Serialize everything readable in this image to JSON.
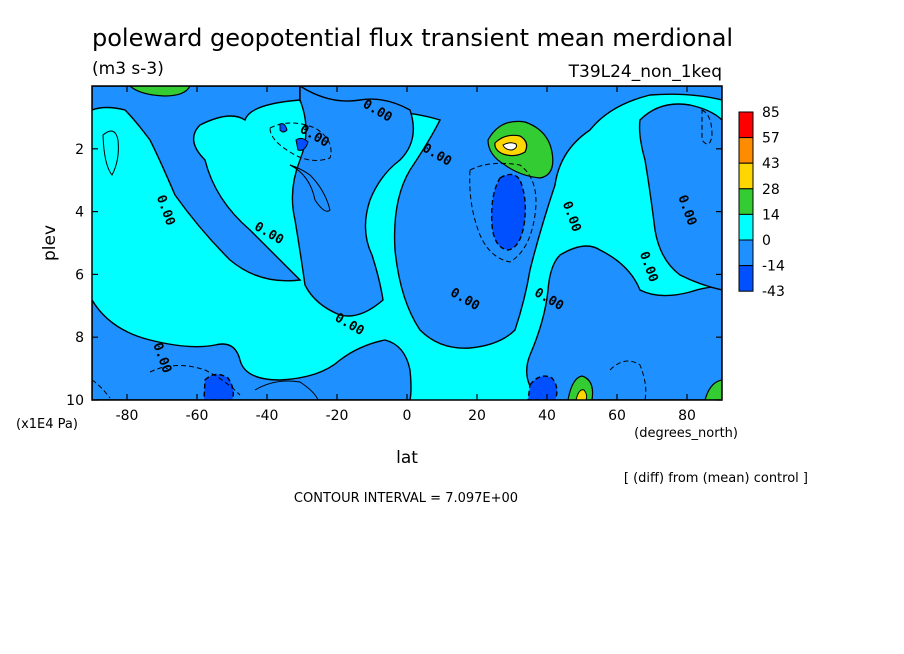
{
  "chart_data": {
    "type": "contour",
    "title": "poleward geopotential flux transient mean merdional",
    "units": "(m3 s-3)",
    "experiment": "T39L24_non_1keq",
    "xlabel": "lat",
    "x_units": "(degrees_north)",
    "ylabel": "plev",
    "y_units": "(x1E4 Pa)",
    "xlim": [
      -90,
      90
    ],
    "ylim": [
      10,
      0
    ],
    "x_ticks": [
      "-80",
      "-60",
      "-40",
      "-20",
      "0",
      "20",
      "40",
      "60",
      "80"
    ],
    "x_tick_values": [
      -80,
      -60,
      -40,
      -20,
      0,
      20,
      40,
      60,
      80
    ],
    "y_ticks": [
      "2",
      "4",
      "6",
      "8",
      "10"
    ],
    "y_tick_values": [
      2,
      4,
      6,
      8,
      10
    ],
    "contour_interval": "CONTOUR INTERVAL = 7.097E+00",
    "footnote": "[ (diff) from (mean) control ]",
    "contour_label": "0.00",
    "colorbar": {
      "labels": [
        "85",
        "57",
        "43",
        "28",
        "14",
        "0",
        "-14",
        "-43"
      ],
      "colors": [
        "#ff0000",
        "#ff8c00",
        "#ffd700",
        "#33cc33",
        "#00ffff",
        "#1e90ff",
        "#0050ff"
      ]
    },
    "features": [
      {
        "kind": "max",
        "lat": 28,
        "plev": 2.0,
        "value": 57
      },
      {
        "kind": "max",
        "lat": -70,
        "plev": 0.3,
        "value": 28
      },
      {
        "kind": "min",
        "lat": 27,
        "plev": 4.0,
        "value": -14
      },
      {
        "kind": "min",
        "lat": 38,
        "plev": 9.7,
        "value": -14
      },
      {
        "kind": "min",
        "lat": -52,
        "plev": 9.6,
        "value": -14
      },
      {
        "kind": "max",
        "lat": 48,
        "plev": 9.7,
        "value": 28
      },
      {
        "kind": "max",
        "lat": 86,
        "plev": 9.6,
        "value": 14
      }
    ],
    "zero_labels": [
      {
        "lat": -70,
        "plev": 4.0
      },
      {
        "lat": -40,
        "plev": 4.8
      },
      {
        "lat": -27,
        "plev": 1.7
      },
      {
        "lat": -9,
        "plev": 0.9
      },
      {
        "lat": 8,
        "plev": 2.3
      },
      {
        "lat": -17,
        "plev": 7.7
      },
      {
        "lat": -71,
        "plev": 8.7
      },
      {
        "lat": 16,
        "plev": 6.9
      },
      {
        "lat": 40,
        "plev": 6.9
      },
      {
        "lat": 46,
        "plev": 4.2
      },
      {
        "lat": 68,
        "plev": 5.8
      },
      {
        "lat": 79,
        "plev": 4.0
      }
    ]
  }
}
